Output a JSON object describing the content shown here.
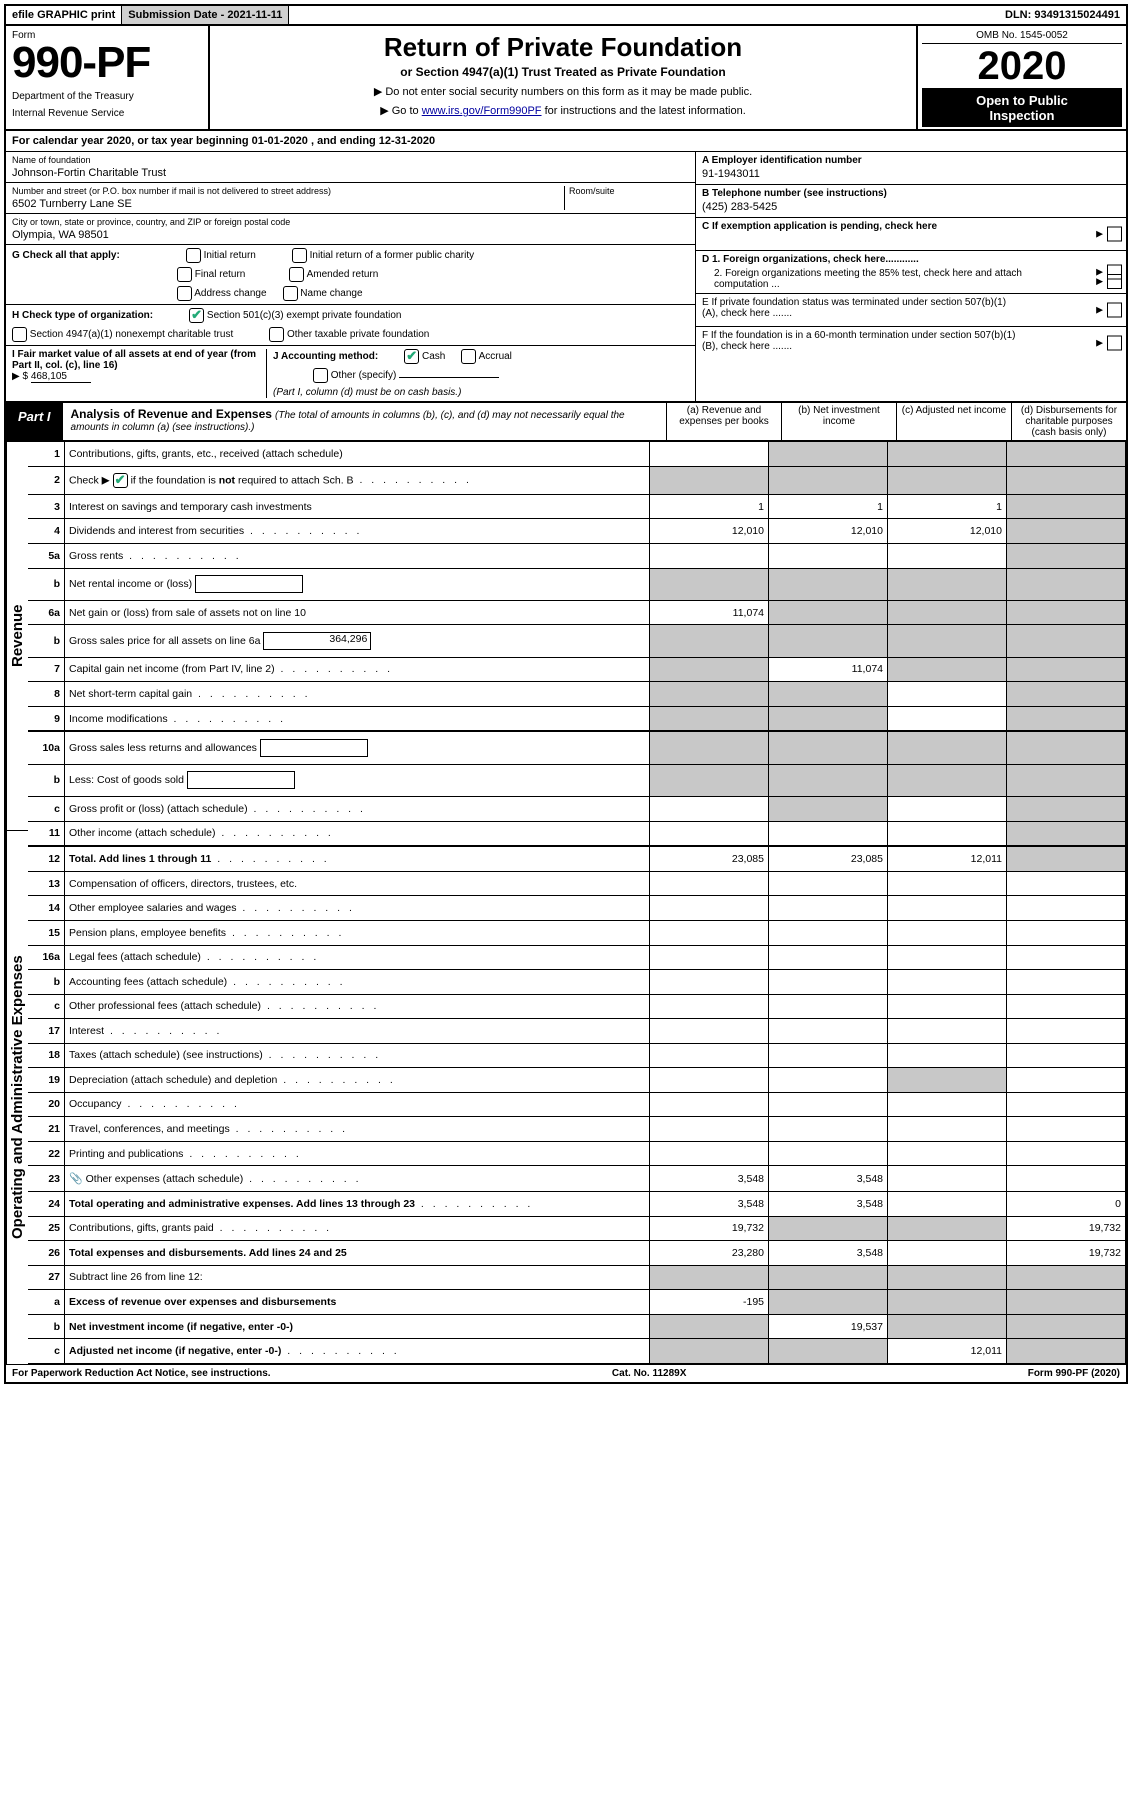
{
  "topbar": {
    "efile": "efile GRAPHIC print",
    "submission_label": "Submission Date - 2021-11-11",
    "dln": "DLN: 93491315024491"
  },
  "header": {
    "form_label": "Form",
    "form_number": "990-PF",
    "dept1": "Department of the Treasury",
    "dept2": "Internal Revenue Service",
    "title": "Return of Private Foundation",
    "subtitle": "or Section 4947(a)(1) Trust Treated as Private Foundation",
    "instr1": "▶ Do not enter social security numbers on this form as it may be made public.",
    "instr2_pre": "▶ Go to ",
    "instr2_link": "www.irs.gov/Form990PF",
    "instr2_post": " for instructions and the latest information.",
    "omb": "OMB No. 1545-0052",
    "year": "2020",
    "open1": "Open to Public",
    "open2": "Inspection"
  },
  "calendar": "For calendar year 2020, or tax year beginning 01-01-2020                             , and ending 12-31-2020",
  "entity": {
    "name_label": "Name of foundation",
    "name": "Johnson-Fortin Charitable Trust",
    "addr_label": "Number and street (or P.O. box number if mail is not delivered to street address)",
    "addr": "6502 Turnberry Lane SE",
    "room_label": "Room/suite",
    "city_label": "City or town, state or province, country, and ZIP or foreign postal code",
    "city": "Olympia, WA  98501",
    "a_label": "A Employer identification number",
    "a_val": "91-1943011",
    "b_label": "B Telephone number (see instructions)",
    "b_val": "(425) 283-5425",
    "c_label": "C If exemption application is pending, check here",
    "d1_label": "D 1. Foreign organizations, check here............",
    "d2_label": "2. Foreign organizations meeting the 85% test, check here and attach computation ...",
    "e_label": "E  If private foundation status was terminated under section 507(b)(1)(A), check here .......",
    "f_label": "F  If the foundation is in a 60-month termination under section 507(b)(1)(B), check here .......",
    "g_label": "G Check all that apply:",
    "g_initial": "Initial return",
    "g_initial_former": "Initial return of a former public charity",
    "g_final": "Final return",
    "g_amended": "Amended return",
    "g_addr": "Address change",
    "g_name": "Name change",
    "h_label": "H Check type of organization:",
    "h_501c3": "Section 501(c)(3) exempt private foundation",
    "h_4947": "Section 4947(a)(1) nonexempt charitable trust",
    "h_other_tax": "Other taxable private foundation",
    "i_label": "I Fair market value of all assets at end of year (from Part II, col. (c), line 16)",
    "i_arrow": "▶ $",
    "i_val": "468,105",
    "j_label": "J Accounting method:",
    "j_cash": "Cash",
    "j_accrual": "Accrual",
    "j_other": "Other (specify)",
    "j_note": "(Part I, column (d) must be on cash basis.)"
  },
  "part1": {
    "tag": "Part I",
    "title": "Analysis of Revenue and Expenses",
    "note": " (The total of amounts in columns (b), (c), and (d) may not necessarily equal the amounts in column (a) (see instructions).)",
    "col_a": "(a)   Revenue and expenses per books",
    "col_b": "(b)   Net investment income",
    "col_c": "(c)   Adjusted net income",
    "col_d": "(d)   Disbursements for charitable purposes (cash basis only)"
  },
  "vlabels": {
    "revenue": "Revenue",
    "expenses": "Operating and Administrative Expenses"
  },
  "rows": [
    {
      "n": "1",
      "d": "Contributions, gifts, grants, etc., received (attach schedule)",
      "a": "",
      "b": "grey",
      "c": "grey",
      "dd": "grey"
    },
    {
      "n": "2",
      "d": "Check ▶ ☑ if the foundation is not required to attach Sch. B",
      "dclass": "dots",
      "a": "grey",
      "b": "grey",
      "c": "grey",
      "dd": "grey",
      "b_checked": true
    },
    {
      "n": "3",
      "d": "Interest on savings and temporary cash investments",
      "a": "1",
      "b": "1",
      "c": "1",
      "dd": "grey"
    },
    {
      "n": "4",
      "d": "Dividends and interest from securities",
      "dclass": "dots",
      "a": "12,010",
      "b": "12,010",
      "c": "12,010",
      "dd": "grey"
    },
    {
      "n": "5a",
      "d": "Gross rents",
      "dclass": "dots",
      "a": "",
      "b": "",
      "c": "",
      "dd": "grey"
    },
    {
      "n": "b",
      "d": "Net rental income or (loss)",
      "inline_box": true,
      "a": "grey",
      "b": "grey",
      "c": "grey",
      "dd": "grey"
    },
    {
      "n": "6a",
      "d": "Net gain or (loss) from sale of assets not on line 10",
      "a": "11,074",
      "b": "grey",
      "c": "grey",
      "dd": "grey"
    },
    {
      "n": "b",
      "d": "Gross sales price for all assets on line 6a",
      "inline_box": true,
      "inline_val": "364,296",
      "a": "grey",
      "b": "grey",
      "c": "grey",
      "dd": "grey"
    },
    {
      "n": "7",
      "d": "Capital gain net income (from Part IV, line 2)",
      "dclass": "dots",
      "a": "grey",
      "b": "11,074",
      "c": "grey",
      "dd": "grey"
    },
    {
      "n": "8",
      "d": "Net short-term capital gain",
      "dclass": "dots",
      "a": "grey",
      "b": "grey",
      "c": "",
      "dd": "grey"
    },
    {
      "n": "9",
      "d": "Income modifications",
      "dclass": "dots",
      "a": "grey",
      "b": "grey",
      "c": "",
      "dd": "grey"
    },
    {
      "n": "10a",
      "d": "Gross sales less returns and allowances",
      "inline_box": true,
      "a": "grey",
      "b": "grey",
      "c": "grey",
      "dd": "grey"
    },
    {
      "n": "b",
      "d": "Less: Cost of goods sold",
      "dclass": "dots",
      "inline_box": true,
      "a": "grey",
      "b": "grey",
      "c": "grey",
      "dd": "grey"
    },
    {
      "n": "c",
      "d": "Gross profit or (loss) (attach schedule)",
      "dclass": "dots",
      "a": "",
      "b": "grey",
      "c": "",
      "dd": "grey"
    },
    {
      "n": "11",
      "d": "Other income (attach schedule)",
      "dclass": "dots",
      "a": "",
      "b": "",
      "c": "",
      "dd": "grey"
    },
    {
      "n": "12",
      "d": "Total. Add lines 1 through 11",
      "dclass": "dots",
      "bold": true,
      "a": "23,085",
      "b": "23,085",
      "c": "12,011",
      "dd": "grey"
    },
    {
      "n": "13",
      "d": "Compensation of officers, directors, trustees, etc.",
      "a": "",
      "b": "",
      "c": "",
      "dd": ""
    },
    {
      "n": "14",
      "d": "Other employee salaries and wages",
      "dclass": "dots",
      "a": "",
      "b": "",
      "c": "",
      "dd": ""
    },
    {
      "n": "15",
      "d": "Pension plans, employee benefits",
      "dclass": "dots",
      "a": "",
      "b": "",
      "c": "",
      "dd": ""
    },
    {
      "n": "16a",
      "d": "Legal fees (attach schedule)",
      "dclass": "dots",
      "a": "",
      "b": "",
      "c": "",
      "dd": ""
    },
    {
      "n": "b",
      "d": "Accounting fees (attach schedule)",
      "dclass": "dots",
      "a": "",
      "b": "",
      "c": "",
      "dd": ""
    },
    {
      "n": "c",
      "d": "Other professional fees (attach schedule)",
      "dclass": "dots",
      "a": "",
      "b": "",
      "c": "",
      "dd": ""
    },
    {
      "n": "17",
      "d": "Interest",
      "dclass": "dots",
      "a": "",
      "b": "",
      "c": "",
      "dd": ""
    },
    {
      "n": "18",
      "d": "Taxes (attach schedule) (see instructions)",
      "dclass": "dots",
      "a": "",
      "b": "",
      "c": "",
      "dd": ""
    },
    {
      "n": "19",
      "d": "Depreciation (attach schedule) and depletion",
      "dclass": "dots",
      "a": "",
      "b": "",
      "c": "grey",
      "dd": ""
    },
    {
      "n": "20",
      "d": "Occupancy",
      "dclass": "dots",
      "a": "",
      "b": "",
      "c": "",
      "dd": ""
    },
    {
      "n": "21",
      "d": "Travel, conferences, and meetings",
      "dclass": "dots",
      "a": "",
      "b": "",
      "c": "",
      "dd": ""
    },
    {
      "n": "22",
      "d": "Printing and publications",
      "dclass": "dots",
      "a": "",
      "b": "",
      "c": "",
      "dd": ""
    },
    {
      "n": "23",
      "d": "Other expenses (attach schedule)",
      "dclass": "dots",
      "attach": true,
      "a": "3,548",
      "b": "3,548",
      "c": "",
      "dd": ""
    },
    {
      "n": "24",
      "d": "Total operating and administrative expenses. Add lines 13 through 23",
      "dclass": "dots",
      "bold": true,
      "a": "3,548",
      "b": "3,548",
      "c": "",
      "dd": "0"
    },
    {
      "n": "25",
      "d": "Contributions, gifts, grants paid",
      "dclass": "dots",
      "a": "19,732",
      "b": "grey",
      "c": "grey",
      "dd": "19,732"
    },
    {
      "n": "26",
      "d": "Total expenses and disbursements. Add lines 24 and 25",
      "bold": true,
      "a": "23,280",
      "b": "3,548",
      "c": "",
      "dd": "19,732"
    },
    {
      "n": "27",
      "d": "Subtract line 26 from line 12:",
      "a": "grey",
      "b": "grey",
      "c": "grey",
      "dd": "grey"
    },
    {
      "n": "a",
      "d": "Excess of revenue over expenses and disbursements",
      "bold": true,
      "a": "-195",
      "b": "grey",
      "c": "grey",
      "dd": "grey"
    },
    {
      "n": "b",
      "d": "Net investment income (if negative, enter -0-)",
      "bold": true,
      "a": "grey",
      "b": "19,537",
      "c": "grey",
      "dd": "grey"
    },
    {
      "n": "c",
      "d": "Adjusted net income (if negative, enter -0-)",
      "dclass": "dots",
      "bold": true,
      "a": "grey",
      "b": "grey",
      "c": "12,011",
      "dd": "grey"
    }
  ],
  "footer": {
    "left": "For Paperwork Reduction Act Notice, see instructions.",
    "mid": "Cat. No. 11289X",
    "right": "Form 990-PF (2020)"
  }
}
